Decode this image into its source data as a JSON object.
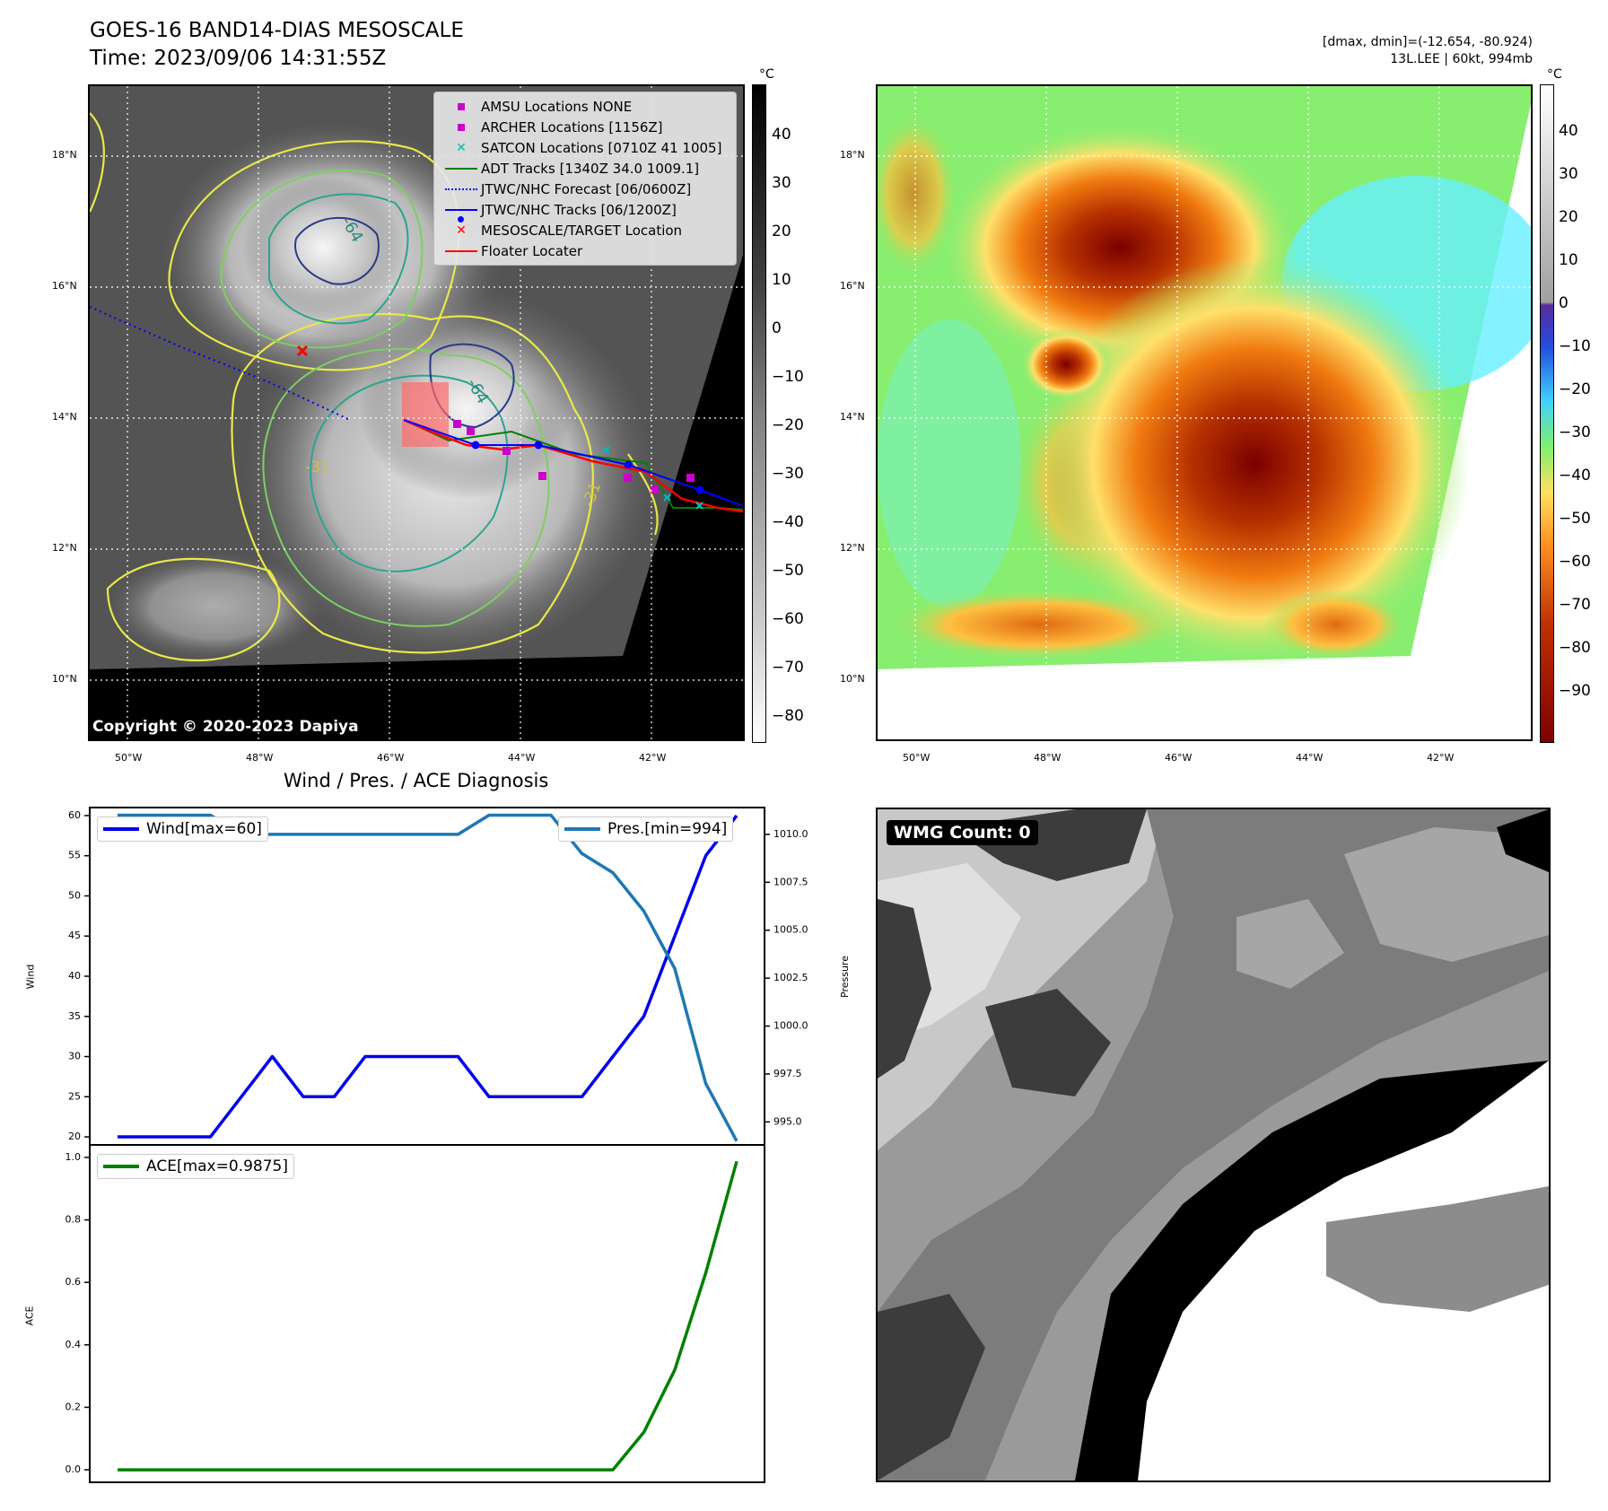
{
  "header": {
    "title_line1": "GOES-16 BAND14-DIAS MESOSCALE",
    "title_line2": "Time: 2023/09/06 14:31:55Z",
    "dmax_dmin": "[dmax, dmin]=(-12.654, -80.924)",
    "storm_info": "13L.LEE | 60kt, 994mb"
  },
  "map_axes": {
    "lat_labels": [
      "18°N",
      "16°N",
      "14°N",
      "12°N",
      "10°N"
    ],
    "lon_labels": [
      "50°W",
      "48°W",
      "46°W",
      "44°W",
      "42°W"
    ]
  },
  "left_map": {
    "colorbar_unit": "°C",
    "colorbar_ticks": [
      "40",
      "30",
      "20",
      "10",
      "0",
      "−10",
      "−20",
      "−30",
      "−40",
      "−50",
      "−60",
      "−70",
      "−80"
    ],
    "copyright": "Copyright © 2020-2023 Dapiya",
    "contour_labels": [
      "-64",
      "-64",
      "-31",
      "-31"
    ],
    "legend": [
      {
        "label": "AMSU Locations NONE",
        "symbol": "square",
        "color": "#cc00cc"
      },
      {
        "label": "ARCHER Locations [1156Z]",
        "symbol": "square",
        "color": "#cc00cc"
      },
      {
        "label": "SATCON Locations [0710Z 41 1005]",
        "symbol": "x",
        "color": "#00bbbb"
      },
      {
        "label": "ADT Tracks [1340Z 34.0 1009.1]",
        "symbol": "line",
        "color": "#008000"
      },
      {
        "label": "JTWC/NHC Forecast [06/0600Z]",
        "symbol": "dotted",
        "color": "#0000ff"
      },
      {
        "label": "JTWC/NHC Tracks [06/1200Z]",
        "symbol": "dotline",
        "color": "#0000ff"
      },
      {
        "label": "MESOSCALE/TARGET Location",
        "symbol": "x",
        "color": "#ff0000"
      },
      {
        "label": "Floater Locater",
        "symbol": "line",
        "color": "#ff0000"
      }
    ]
  },
  "right_map": {
    "colorbar_unit": "°C",
    "colorbar_ticks": [
      "40",
      "30",
      "20",
      "10",
      "0",
      "−10",
      "−20",
      "−30",
      "−40",
      "−50",
      "−60",
      "−70",
      "−80",
      "−90"
    ]
  },
  "diagnosis": {
    "title": "Wind / Pres. / ACE Diagnosis",
    "wind_axis_label": "Wind",
    "pressure_axis_label": "Pressure",
    "ace_axis_label": "ACE",
    "wind_legend": "Wind[max=60]",
    "pres_legend": "Pres.[min=994]",
    "ace_legend": "ACE[max=0.9875]",
    "wind_ticks": [
      "60",
      "55",
      "50",
      "45",
      "40",
      "35",
      "30",
      "25",
      "20"
    ],
    "pres_ticks": [
      "1010.0",
      "1007.5",
      "1005.0",
      "1002.5",
      "1000.0",
      "997.5",
      "995.0"
    ],
    "ace_ticks": [
      "1.0",
      "0.8",
      "0.6",
      "0.4",
      "0.2",
      "0.0"
    ]
  },
  "wmg": {
    "label": "WMG Count: 0"
  },
  "chart_data": {
    "type": "line",
    "title": "Wind / Pres. / ACE Diagnosis",
    "x": [
      0,
      1,
      2,
      3,
      4,
      5,
      6,
      7,
      8,
      9,
      10,
      11,
      12,
      13,
      14,
      15,
      16,
      17,
      18,
      19,
      20
    ],
    "series": [
      {
        "name": "Wind[max=60]",
        "color": "#0000ee",
        "axis": "wind",
        "values": [
          20,
          20,
          20,
          20,
          25,
          30,
          25,
          25,
          30,
          30,
          30,
          30,
          25,
          25,
          25,
          25,
          30,
          35,
          45,
          55,
          60
        ]
      },
      {
        "name": "Pres.[min=994]",
        "color": "#1f77b4",
        "axis": "pressure",
        "values": [
          1011,
          1011,
          1011,
          1011,
          1010,
          1010,
          1010,
          1010,
          1010,
          1010,
          1010,
          1010,
          1011,
          1011,
          1011,
          1009,
          1008,
          1006,
          1003,
          997,
          994
        ]
      },
      {
        "name": "ACE[max=0.9875]",
        "color": "#008000",
        "axis": "ace",
        "values": [
          0,
          0,
          0,
          0,
          0,
          0,
          0,
          0,
          0,
          0,
          0,
          0,
          0,
          0,
          0,
          0,
          0,
          0.12,
          0.32,
          0.63,
          0.9875
        ]
      }
    ],
    "wind_ylim": [
      19,
      61
    ],
    "pressure_ylim": [
      993.8,
      1011.4
    ],
    "ace_ylim": [
      -0.04,
      1.04
    ],
    "xlabel": "",
    "ylabel": "Wind"
  }
}
